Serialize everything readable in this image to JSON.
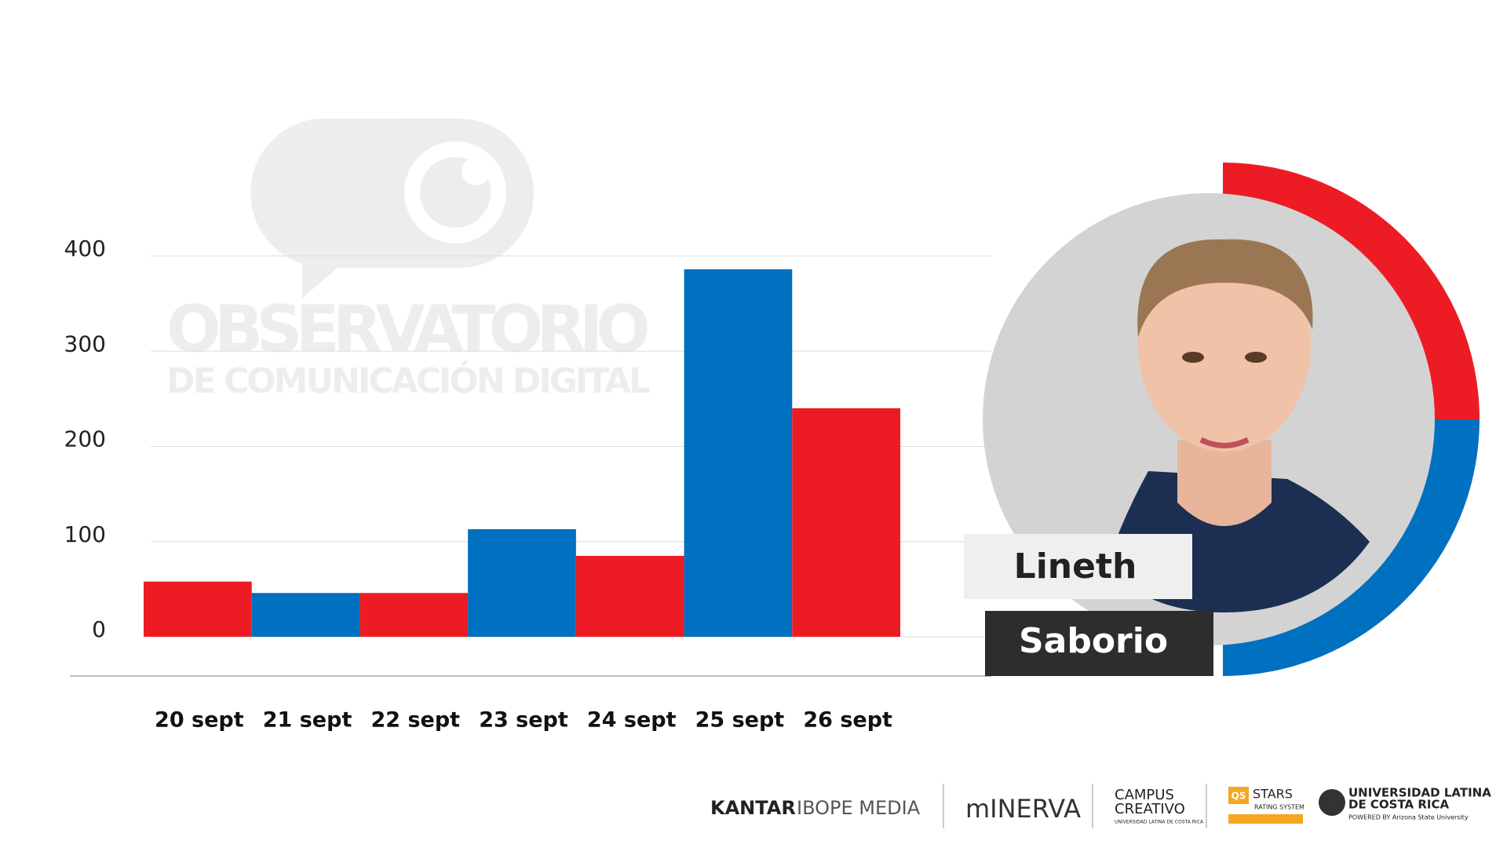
{
  "chart_data": {
    "type": "bar",
    "categories": [
      "20 sept",
      "21 sept",
      "22 sept",
      "23 sept",
      "24 sept",
      "25 sept",
      "26 sept"
    ],
    "values": [
      58,
      46,
      46,
      113,
      85,
      386,
      240
    ],
    "colors": [
      "#ed1c24",
      "#0070c0",
      "#ed1c24",
      "#0070c0",
      "#ed1c24",
      "#0070c0",
      "#ed1c24"
    ],
    "ylim": [
      0,
      400
    ],
    "yticks": [
      0,
      100,
      200,
      300,
      400
    ],
    "grid": true
  },
  "watermark": {
    "title": "OBSERVATORIO",
    "subtitle": "DE COMUNICACIÓN DIGITAL"
  },
  "person": {
    "first_name": "Lineth",
    "last_name": "Saborio"
  },
  "footer": {
    "kantar": "KANTAR",
    "ibope": "IBOPE MEDIA",
    "minerva": "mINERVA",
    "campus": "CAMPUS",
    "creativo": "CREATIVO",
    "campus_sub": "UNIVERSIDAD LATINA DE COSTA RICA",
    "qs": "QS",
    "stars": "STARS",
    "rating": "RATING SYSTEM",
    "ulatina_1": "UNIVERSIDAD LATINA",
    "ulatina_2": "DE COSTA RICA",
    "powered": "POWERED BY Arizona State University"
  }
}
